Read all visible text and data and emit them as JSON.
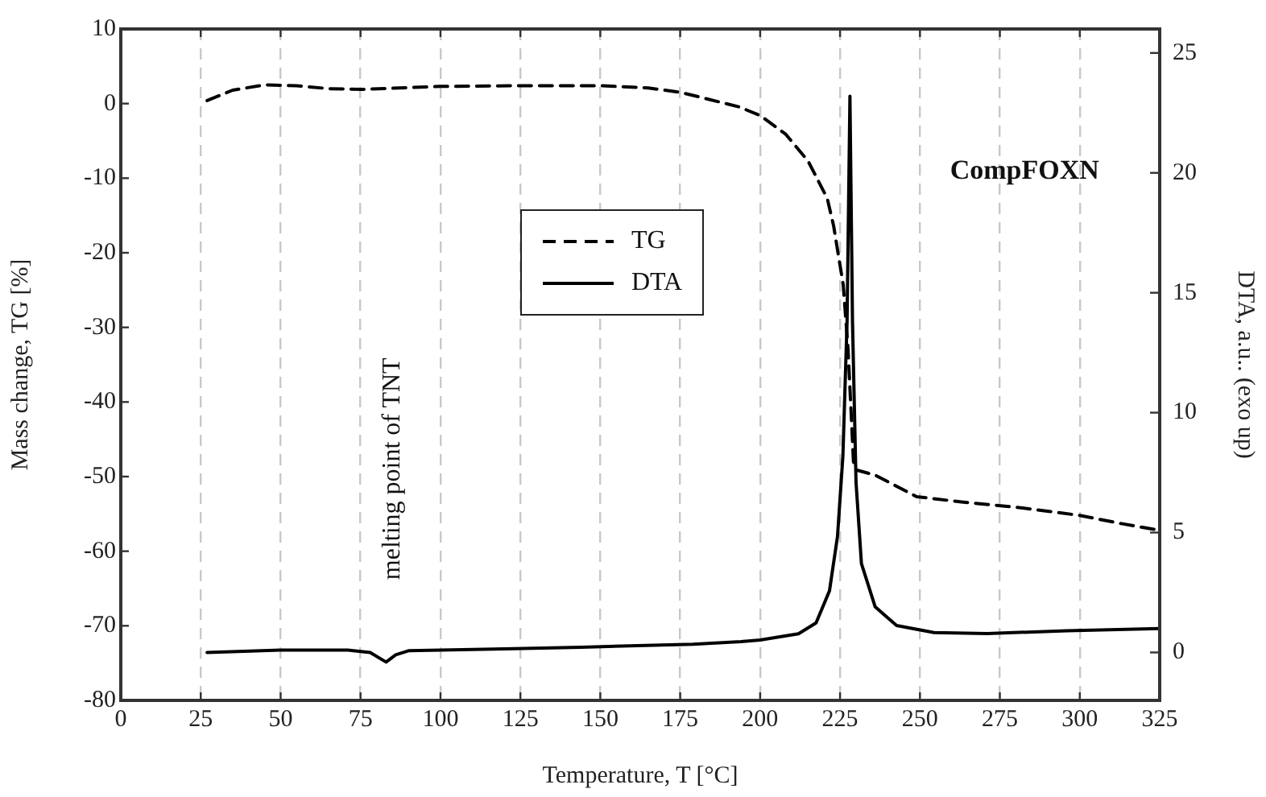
{
  "chart_data": {
    "type": "line",
    "xlabel": "Temperature, T [°C]",
    "ylabel": "Mass change, TG [%]",
    "y2label": "DTA, a.u.. (exo up)",
    "xlim": [
      0,
      325
    ],
    "xticks": [
      0,
      25,
      50,
      75,
      100,
      125,
      150,
      175,
      200,
      225,
      250,
      275,
      300,
      325
    ],
    "ylim": [
      -80,
      10
    ],
    "yticks": [
      -80,
      -70,
      -60,
      -50,
      -40,
      -30,
      -20,
      -10,
      0,
      10
    ],
    "y2lim": [
      -2,
      26
    ],
    "y2ticks": [
      0,
      5,
      10,
      15,
      20,
      25
    ],
    "grid": "x",
    "legend": "top",
    "marker": "none",
    "annotations": [
      "CompFOXN",
      "melting point of TNT"
    ],
    "series": [
      {
        "name": "TG",
        "color": "#000000",
        "line_style": "dashed",
        "x": [
          27,
          35,
          45,
          55,
          65,
          75,
          100,
          125,
          150,
          165,
          175,
          179,
          194,
          196,
          200,
          208,
          215,
          221,
          223,
          226,
          227.5,
          228.4,
          229.2,
          230,
          236,
          249,
          263,
          280,
          300,
          313,
          325
        ],
        "values": [
          0.4,
          1.8,
          2.5,
          2.4,
          2.0,
          1.9,
          2.3,
          2.4,
          2.4,
          2.1,
          1.5,
          1.1,
          -0.5,
          -0.9,
          -1.6,
          -4.1,
          -7.7,
          -12.7,
          -16.4,
          -24.3,
          -32.9,
          -40.8,
          -48,
          -49.1,
          -49.8,
          -52.7,
          -53.4,
          -54.1,
          -55.2,
          -56.3,
          -57.2
        ]
      },
      {
        "name": "DTA",
        "color": "#000000",
        "line_style": "solid",
        "axis": "y2",
        "x": [
          27,
          50,
          71,
          78,
          83,
          86,
          90,
          120,
          144,
          179,
          194,
          200,
          212,
          217.5,
          221.7,
          224.2,
          225.9,
          227.2,
          228.1,
          228.9,
          230,
          231.7,
          236,
          242.7,
          254.4,
          271,
          296,
          325
        ],
        "values": [
          0,
          0.1,
          0.1,
          0.0,
          -0.4,
          -0.1,
          0.07,
          0.15,
          0.22,
          0.34,
          0.45,
          0.52,
          0.78,
          1.23,
          2.57,
          4.83,
          8.2,
          13.8,
          23.2,
          13.8,
          7.1,
          3.7,
          1.9,
          1.12,
          0.83,
          0.79,
          0.9,
          1.0
        ]
      }
    ]
  }
}
